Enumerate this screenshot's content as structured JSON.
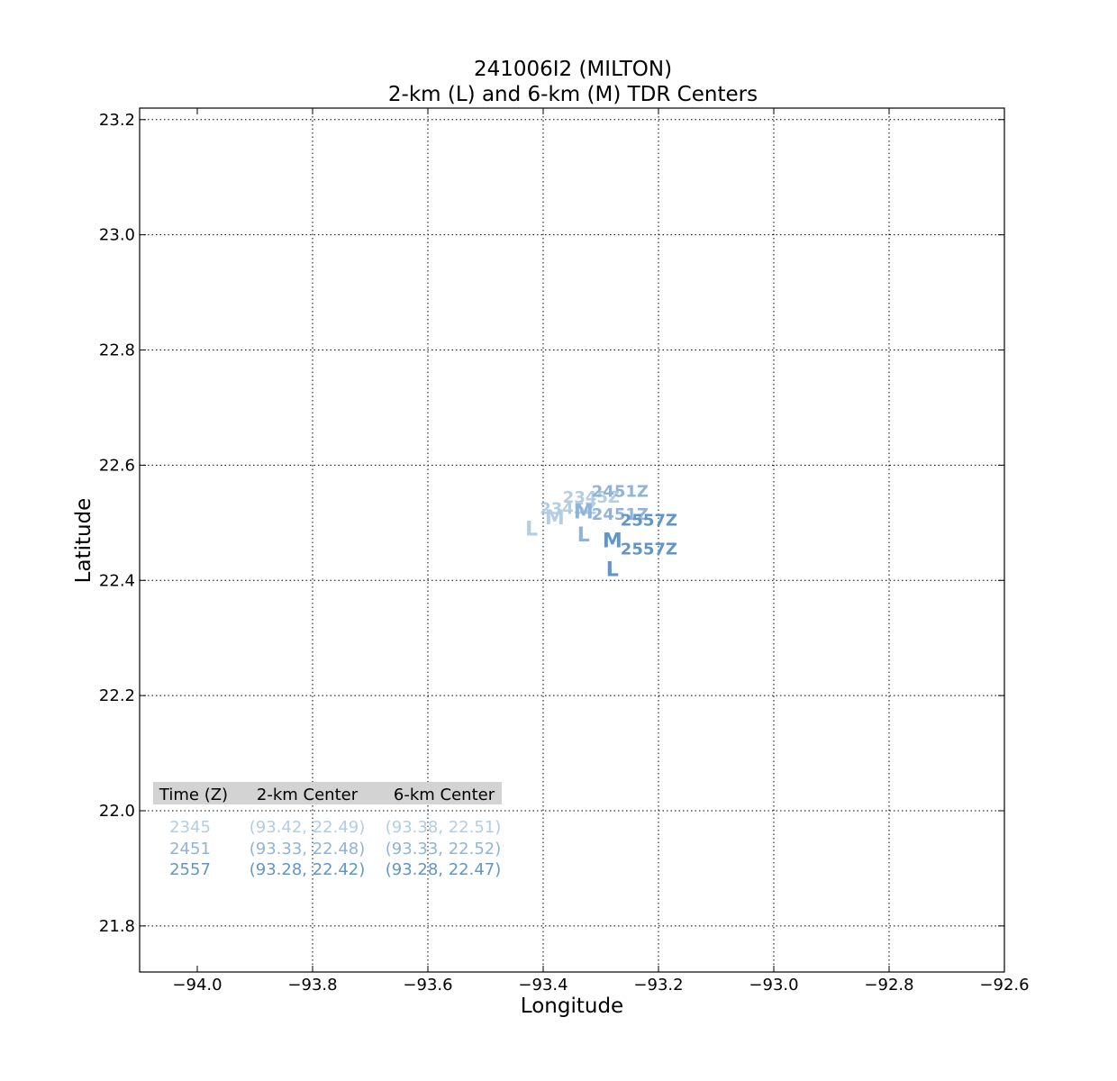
{
  "chart_data": {
    "type": "scatter",
    "title": "241006I2 (MILTON)",
    "subtitle": "2-km (L) and 6-km (M) TDR Centers",
    "xlabel": "Longitude",
    "ylabel": "Latitude",
    "xlim": [
      -94.1,
      -92.6
    ],
    "ylim": [
      21.72,
      23.22
    ],
    "xticks": [
      -94.0,
      -93.8,
      -93.6,
      -93.4,
      -93.2,
      -93.0,
      -92.8,
      -92.6
    ],
    "xtick_labels": [
      "−94.0",
      "−93.8",
      "−93.6",
      "−93.4",
      "−93.2",
      "−93.0",
      "−92.8",
      "−92.6"
    ],
    "yticks": [
      21.8,
      22.0,
      22.2,
      22.4,
      22.6,
      22.8,
      23.0,
      23.2
    ],
    "ytick_labels": [
      "21.8",
      "22.0",
      "22.2",
      "22.4",
      "22.6",
      "22.8",
      "23.0",
      "23.2"
    ],
    "grid": true,
    "marker_low": "L",
    "marker_mid": "M",
    "series": [
      {
        "time": "2345",
        "time_label": "2345Z",
        "center_2km": {
          "lon": -93.42,
          "lat": 22.49
        },
        "center_6km": {
          "lon": -93.38,
          "lat": 22.51
        },
        "center_2km_text": "(93.42, 22.49)",
        "center_6km_text": "(93.38, 22.51)",
        "color": "#b3cde3"
      },
      {
        "time": "2451",
        "time_label": "2451Z",
        "center_2km": {
          "lon": -93.33,
          "lat": 22.48
        },
        "center_6km": {
          "lon": -93.33,
          "lat": 22.52
        },
        "center_2km_text": "(93.33, 22.48)",
        "center_6km_text": "(93.33, 22.52)",
        "color": "#8fb4d8"
      },
      {
        "time": "2557",
        "time_label": "2557Z",
        "center_2km": {
          "lon": -93.28,
          "lat": 22.42
        },
        "center_6km": {
          "lon": -93.28,
          "lat": 22.47
        },
        "center_2km_text": "(93.28, 22.42)",
        "center_6km_text": "(93.28, 22.47)",
        "color": "#6096c8"
      }
    ],
    "table": {
      "headers": [
        "Time (Z)",
        "2-km Center",
        "6-km Center"
      ],
      "header_bg": "#d3d3d3"
    }
  }
}
